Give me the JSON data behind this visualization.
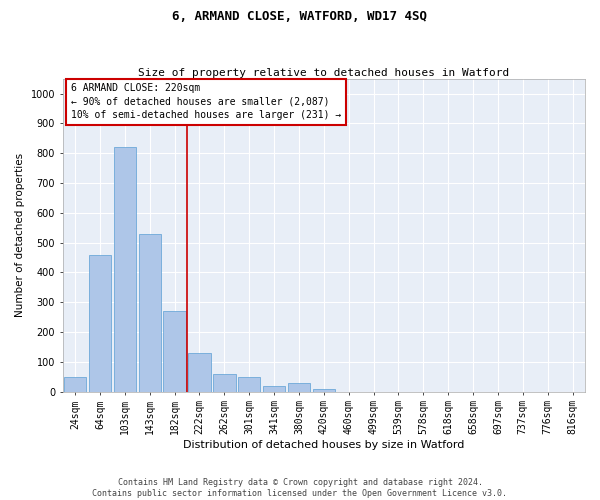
{
  "title": "6, ARMAND CLOSE, WATFORD, WD17 4SQ",
  "subtitle": "Size of property relative to detached houses in Watford",
  "xlabel": "Distribution of detached houses by size in Watford",
  "ylabel": "Number of detached properties",
  "categories": [
    "24sqm",
    "64sqm",
    "103sqm",
    "143sqm",
    "182sqm",
    "222sqm",
    "262sqm",
    "301sqm",
    "341sqm",
    "380sqm",
    "420sqm",
    "460sqm",
    "499sqm",
    "539sqm",
    "578sqm",
    "618sqm",
    "658sqm",
    "697sqm",
    "737sqm",
    "776sqm",
    "816sqm"
  ],
  "values": [
    50,
    460,
    820,
    530,
    270,
    130,
    60,
    50,
    20,
    30,
    10,
    0,
    0,
    0,
    0,
    0,
    0,
    0,
    0,
    0,
    0
  ],
  "bar_color": "#aec6e8",
  "bar_edgecolor": "#5a9fd4",
  "bg_color": "#e8eef7",
  "grid_color": "#ffffff",
  "vline_color": "#cc0000",
  "vline_pos": 4.5,
  "annotation_text": "6 ARMAND CLOSE: 220sqm\n← 90% of detached houses are smaller (2,087)\n10% of semi-detached houses are larger (231) →",
  "annotation_box_color": "#cc0000",
  "footer_line1": "Contains HM Land Registry data © Crown copyright and database right 2024.",
  "footer_line2": "Contains public sector information licensed under the Open Government Licence v3.0.",
  "ylim": [
    0,
    1050
  ],
  "yticks": [
    0,
    100,
    200,
    300,
    400,
    500,
    600,
    700,
    800,
    900,
    1000
  ],
  "title_fontsize": 9,
  "subtitle_fontsize": 8,
  "xlabel_fontsize": 8,
  "ylabel_fontsize": 7.5,
  "tick_fontsize": 7,
  "annotation_fontsize": 7,
  "footer_fontsize": 6
}
